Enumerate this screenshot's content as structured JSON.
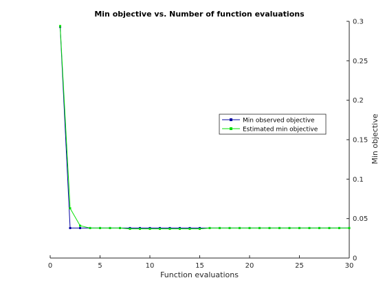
{
  "chart_data": {
    "type": "line",
    "title": "Min objective vs. Number of function evaluations",
    "xlabel": "Function evaluations",
    "ylabel": "Min objective",
    "xlim": [
      0,
      30
    ],
    "ylim": [
      0,
      0.3
    ],
    "xticks": [
      0,
      5,
      10,
      15,
      20,
      25,
      30
    ],
    "yticks": [
      0,
      0.05,
      0.1,
      0.15,
      0.2,
      0.25,
      0.3
    ],
    "xtick_labels": [
      "0",
      "5",
      "10",
      "15",
      "20",
      "25",
      "30"
    ],
    "ytick_labels": [
      "0",
      "0.05",
      "0.1",
      "0.15",
      "0.2",
      "0.25",
      "0.3"
    ],
    "y_axis_position": "right",
    "grid": false,
    "legend_position": "right-middle",
    "x": [
      1,
      2,
      3,
      4,
      5,
      6,
      7,
      8,
      9,
      10,
      11,
      12,
      13,
      14,
      15,
      16,
      17,
      18,
      19,
      20,
      21,
      22,
      23,
      24,
      25,
      26,
      27,
      28,
      29,
      30
    ],
    "series": [
      {
        "name": "Min observed objective",
        "color": "#0000a0",
        "marker": "square",
        "values": [
          0.293,
          0.038,
          0.038,
          0.038,
          0.038,
          0.038,
          0.038,
          0.038,
          0.038,
          0.038,
          0.038,
          0.038,
          0.038,
          0.038,
          0.038,
          0.038,
          0.038,
          0.038,
          0.038,
          0.038,
          0.038,
          0.038,
          0.038,
          0.038,
          0.038,
          0.038,
          0.038,
          0.038,
          0.038,
          0.038
        ]
      },
      {
        "name": "Estimated min objective",
        "color": "#00e000",
        "marker": "square",
        "values": [
          0.294,
          0.063,
          0.041,
          0.038,
          0.038,
          0.038,
          0.038,
          0.037,
          0.037,
          0.037,
          0.037,
          0.037,
          0.037,
          0.037,
          0.037,
          0.038,
          0.038,
          0.038,
          0.038,
          0.038,
          0.038,
          0.038,
          0.038,
          0.038,
          0.038,
          0.038,
          0.038,
          0.038,
          0.038,
          0.038
        ]
      }
    ]
  }
}
